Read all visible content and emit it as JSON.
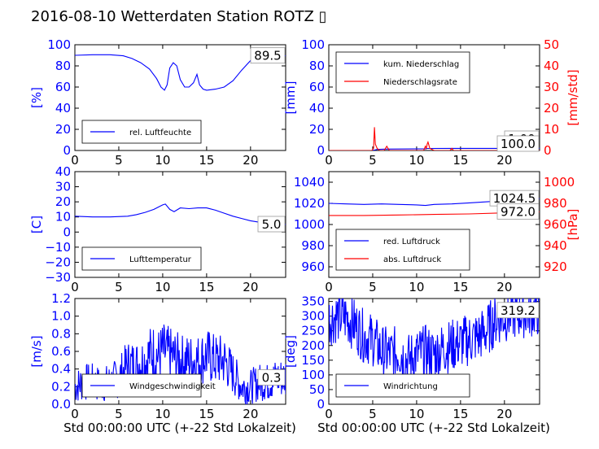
{
  "title": "2016-08-10 Wetterdaten Station ROTZ",
  "title_glyph": "▯",
  "colors": {
    "blue": "#0000ff",
    "red": "#ff0000",
    "black": "#000000"
  },
  "xlabel": "Std 00:00:00 UTC (+-22 Std Lokalzeit)",
  "chart_data": [
    {
      "type": "line",
      "xlim": [
        0,
        24
      ],
      "xticks": [
        "0",
        "5",
        "10",
        "15",
        "20"
      ],
      "ylim": [
        0,
        100
      ],
      "yticks": [
        "0",
        "20",
        "40",
        "60",
        "80",
        "100"
      ],
      "ylabel": "[%]",
      "legend": "bottom",
      "series": [
        {
          "name": "rel. Luftfeuchte",
          "color": "#0000ff",
          "x": [
            0,
            2,
            4,
            5.5,
            6.5,
            7.5,
            8.5,
            9.3,
            9.8,
            10.2,
            10.5,
            10.8,
            11.2,
            11.6,
            12,
            12.5,
            13,
            13.5,
            13.9,
            14.2,
            14.6,
            15,
            16,
            17,
            18,
            19,
            20,
            21,
            22,
            23,
            24
          ],
          "y": [
            90,
            90.5,
            90.5,
            89.5,
            87,
            83,
            77,
            68,
            60,
            57,
            62,
            78,
            83,
            80,
            67,
            60,
            60,
            64,
            72,
            62,
            58,
            57,
            58,
            60,
            66,
            76,
            85,
            88,
            89,
            89.5,
            89.5
          ]
        }
      ],
      "annotation": "89.5"
    },
    {
      "type": "line",
      "xlim": [
        0,
        24
      ],
      "xticks": [
        "0",
        "5",
        "10",
        "15",
        "20"
      ],
      "ylim": [
        0,
        100
      ],
      "yticks": [
        "0",
        "20",
        "40",
        "60",
        "80",
        "100"
      ],
      "ylabel": "[mm]",
      "y2lim": [
        0,
        50
      ],
      "y2ticks": [
        "0",
        "10",
        "20",
        "30",
        "40",
        "50"
      ],
      "y2label": "[mm/std]",
      "legend": "top",
      "series": [
        {
          "name": "kum. Niederschlag",
          "color": "#0000ff",
          "x": [
            0,
            5,
            5.5,
            6.5,
            11,
            11.2,
            14,
            24
          ],
          "y": [
            0,
            0,
            1,
            1.3,
            1.6,
            1.9,
            2,
            2
          ]
        },
        {
          "name": "Niederschlagsrate",
          "color": "#ff0000",
          "axis": "y2",
          "x": [
            0,
            4.9,
            5.1,
            5.2,
            5.3,
            5.5,
            5.8,
            6.3,
            6.6,
            6.9,
            7.5,
            10.8,
            11.0,
            11.1,
            11.2,
            11.3,
            11.5,
            12,
            13.8,
            14,
            14.2,
            24
          ],
          "y": [
            0,
            0,
            1,
            11,
            3,
            1,
            0,
            0,
            2,
            0,
            0,
            0,
            2,
            1,
            3,
            4,
            1,
            0,
            0,
            1,
            0,
            0
          ]
        }
      ],
      "annotation": "100.0",
      "annotation2": "1.00"
    },
    {
      "type": "line",
      "xlim": [
        0,
        24
      ],
      "xticks": [
        "0",
        "5",
        "10",
        "15",
        "20"
      ],
      "ylim": [
        -30,
        40
      ],
      "yticks": [
        "−30",
        "−20",
        "−10",
        "0",
        "10",
        "20",
        "30",
        "40"
      ],
      "ylabel": "[C]",
      "legend": "bottom",
      "series": [
        {
          "name": "Lufttemperatur",
          "color": "#0000ff",
          "x": [
            0,
            2,
            4,
            6,
            7,
            8,
            9,
            9.5,
            10,
            10.3,
            10.8,
            11.3,
            12,
            13,
            14,
            15,
            16,
            17,
            18,
            19,
            20,
            21,
            22,
            23,
            24
          ],
          "y": [
            10.5,
            10,
            10,
            10.5,
            11.5,
            13,
            15,
            16.5,
            18,
            18.5,
            15,
            13.5,
            16,
            15.5,
            16,
            16,
            14.5,
            12.5,
            10.5,
            9,
            7.5,
            6.5,
            5.5,
            5,
            5
          ]
        }
      ],
      "annotation": "5.0"
    },
    {
      "type": "line",
      "xlim": [
        0,
        24
      ],
      "xticks": [
        "0",
        "5",
        "10",
        "15",
        "20"
      ],
      "ylim": [
        950,
        1050
      ],
      "yticks": [
        "960",
        "980",
        "1000",
        "1020",
        "1040"
      ],
      "y2lim": [
        910,
        1010
      ],
      "y2ticks": [
        "920",
        "940",
        "960",
        "980",
        "1000"
      ],
      "y2label": "[hPa]",
      "legend": "bottom",
      "series": [
        {
          "name": "red. Luftdruck",
          "color": "#0000ff",
          "x": [
            0,
            2,
            4,
            6,
            8,
            10,
            11,
            12,
            14,
            16,
            18,
            20,
            22,
            24
          ],
          "y": [
            1020,
            1019.5,
            1019,
            1019.5,
            1019,
            1018.5,
            1018,
            1019,
            1019.5,
            1020.5,
            1021.5,
            1022.5,
            1024,
            1024.5
          ]
        },
        {
          "name": "abs. Luftdruck",
          "color": "#ff0000",
          "axis": "y2",
          "x": [
            0,
            4,
            8,
            12,
            16,
            20,
            24
          ],
          "y": [
            968.5,
            968.5,
            969,
            969.5,
            970,
            971,
            972
          ]
        }
      ],
      "annotation": "1024.5",
      "annotation2": "972.0"
    },
    {
      "type": "line",
      "xlim": [
        0,
        24
      ],
      "xticks": [
        "0",
        "5",
        "10",
        "15",
        "20"
      ],
      "ylim": [
        0,
        1.2
      ],
      "yticks": [
        "0.0",
        "0.2",
        "0.4",
        "0.6",
        "0.8",
        "1.0",
        "1.2"
      ],
      "ylabel": "[m/s]",
      "legend": "bottom",
      "series": [
        {
          "name": "Windgeschwindigkeit",
          "color": "#0000ff",
          "noisy": true,
          "x": [
            0,
            1,
            2,
            3,
            4,
            5,
            6,
            7,
            8,
            8.8,
            9.5,
            10,
            11,
            12,
            13,
            14,
            15,
            16,
            17,
            18,
            19,
            20,
            21,
            22,
            23,
            24
          ],
          "y": [
            0.2,
            0.25,
            0.25,
            0.22,
            0.25,
            0.3,
            0.45,
            0.45,
            0.5,
            0.6,
            0.55,
            0.6,
            0.55,
            0.5,
            0.5,
            0.5,
            0.55,
            0.5,
            0.5,
            0.35,
            0.2,
            0.2,
            0.25,
            0.25,
            0.3,
            0.3
          ]
        }
      ],
      "annotation": "0.3"
    },
    {
      "type": "line",
      "xlim": [
        0,
        24
      ],
      "xticks": [
        "0",
        "5",
        "10",
        "15",
        "20"
      ],
      "ylim": [
        0,
        360
      ],
      "yticks": [
        "0",
        "50",
        "100",
        "150",
        "200",
        "250",
        "300",
        "350"
      ],
      "ylabel": "[deg]",
      "legend": "bottom",
      "series": [
        {
          "name": "Windrichtung",
          "color": "#0000ff",
          "noisy": true,
          "x": [
            0,
            1,
            2,
            3,
            4,
            5,
            6,
            7,
            8,
            9,
            10,
            11,
            12,
            13,
            14,
            15,
            16,
            17,
            18,
            19,
            20,
            21,
            22,
            23,
            24
          ],
          "y": [
            290,
            300,
            295,
            270,
            230,
            220,
            180,
            170,
            180,
            150,
            170,
            180,
            170,
            190,
            200,
            210,
            220,
            230,
            250,
            290,
            300,
            310,
            315,
            318,
            319
          ]
        }
      ],
      "annotation": "319.2"
    }
  ]
}
